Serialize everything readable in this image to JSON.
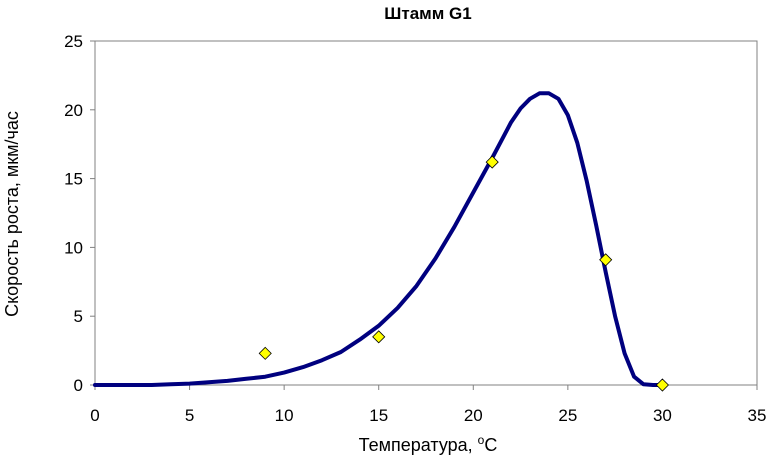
{
  "chart_data": {
    "type": "line",
    "title": "Штамм G1",
    "xlabel": {
      "prefix": "Температура, ",
      "sup": "o",
      "suffix": "C"
    },
    "ylabel": "Скорость роста, мкм/час",
    "xlim": [
      0,
      35
    ],
    "ylim": [
      0,
      25
    ],
    "x_ticks": [
      "0",
      "5",
      "10",
      "15",
      "20",
      "25",
      "30",
      "35"
    ],
    "y_ticks": [
      "0",
      "5",
      "10",
      "15",
      "20",
      "25"
    ],
    "grid": false,
    "series": [
      {
        "kind": "fitted-curve",
        "color": "#00007F",
        "x": [
          0,
          3,
          4,
          5,
          6,
          7,
          8,
          9,
          10,
          11,
          12,
          13,
          14,
          15,
          16,
          17,
          18,
          19,
          20,
          21,
          21.5,
          22,
          22.5,
          23,
          23.5,
          24,
          24.5,
          25,
          25.5,
          26,
          26.5,
          27,
          27.5,
          28,
          28.5,
          29,
          29.5,
          30
        ],
        "y": [
          0,
          0,
          0.05,
          0.1,
          0.2,
          0.3,
          0.45,
          0.6,
          0.9,
          1.3,
          1.8,
          2.4,
          3.3,
          4.3,
          5.6,
          7.2,
          9.2,
          11.5,
          14.0,
          16.5,
          17.8,
          19.1,
          20.1,
          20.8,
          21.2,
          21.2,
          20.8,
          19.6,
          17.6,
          14.8,
          11.6,
          8.2,
          5.0,
          2.3,
          0.6,
          0.05,
          0,
          0
        ]
      },
      {
        "kind": "markers",
        "color": "#FFFF00",
        "x": [
          9,
          15,
          21,
          27,
          30
        ],
        "y": [
          2.3,
          3.5,
          16.2,
          9.1,
          0.0
        ]
      }
    ]
  }
}
